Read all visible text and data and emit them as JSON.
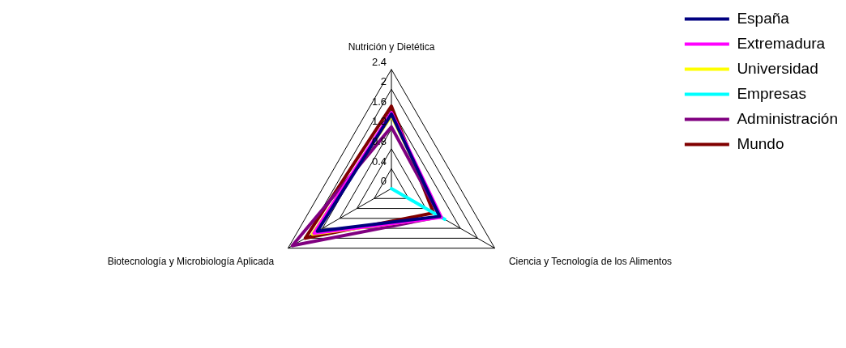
{
  "chart_data": {
    "type": "radar",
    "categories": [
      "Nutrición y Dietética",
      "Ciencia y Tecnología de los Alimentos",
      "Biotecnología y Microbiología Aplicada"
    ],
    "series": [
      {
        "name": "España",
        "color": "#000080",
        "values": [
          1.5,
          1.12,
          1.72
        ]
      },
      {
        "name": "Extremadura",
        "color": "#ff00ff",
        "values": [
          1.53,
          1.16,
          1.8
        ]
      },
      {
        "name": "Universidad",
        "color": "#ffff00",
        "values": [
          1.47,
          1.15,
          1.83
        ]
      },
      {
        "name": "Empresas",
        "color": "#00ffff",
        "values": [
          0,
          1.24,
          0
        ]
      },
      {
        "name": "Administración",
        "color": "#800080",
        "values": [
          1.24,
          1.13,
          2.3
        ]
      },
      {
        "name": "Mundo",
        "color": "#800000",
        "values": [
          1.66,
          0.98,
          2.0
        ]
      }
    ],
    "ylim": [
      0,
      2.4
    ],
    "yticks": [
      0,
      0.4,
      0.8,
      1.2,
      1.6,
      2,
      2.4
    ],
    "grid": true,
    "legend": "top right"
  }
}
